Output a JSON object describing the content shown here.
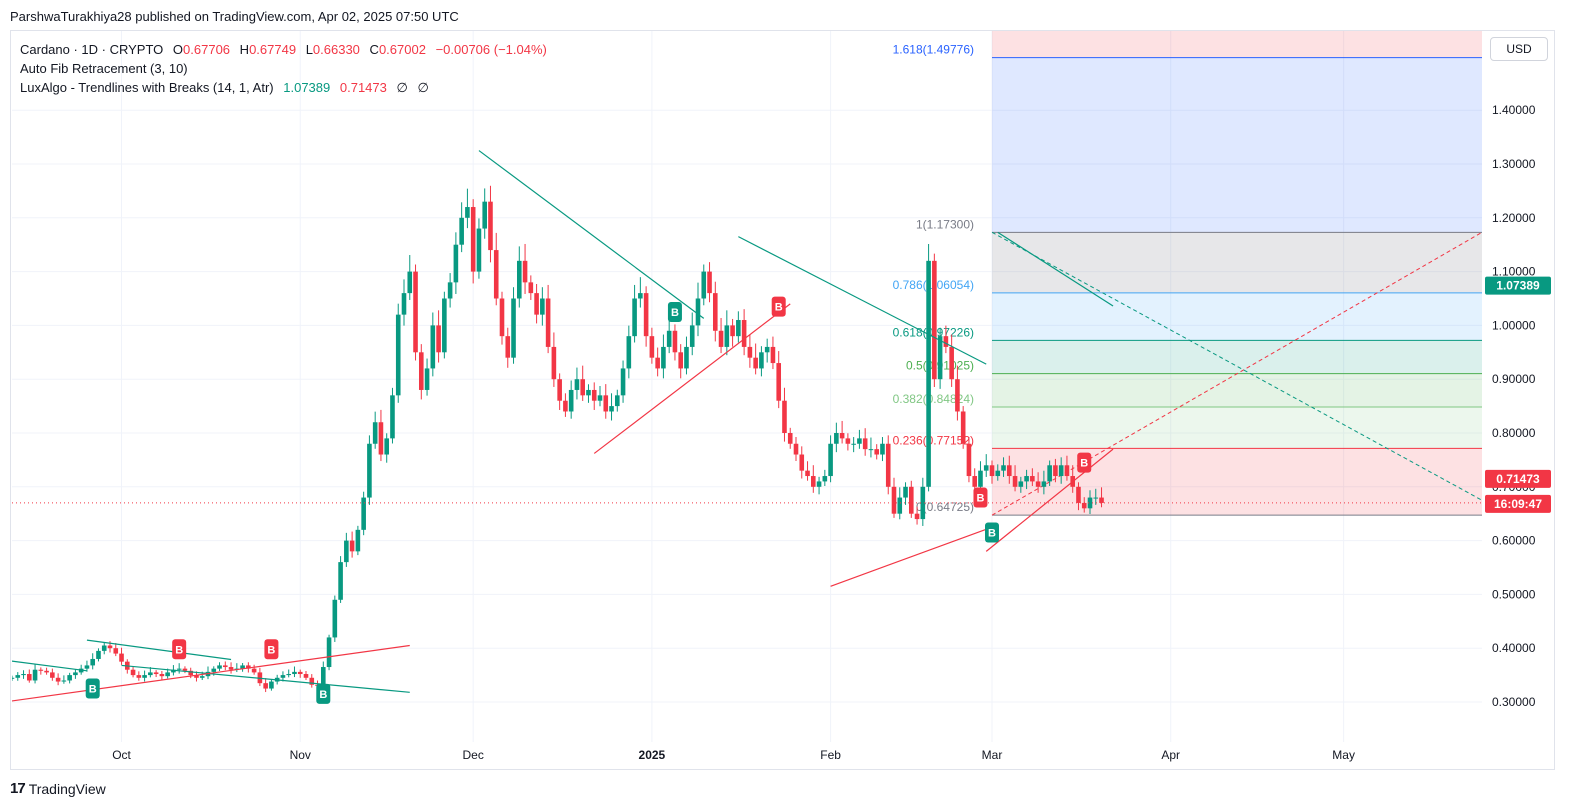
{
  "publisher_line": "ParshwaTurakhiya28 published on TradingView.com, Apr 02, 2025 07:50 UTC",
  "legend": {
    "symbol": "Cardano · 1D · CRYPTO",
    "o_label": "O",
    "o_value": "0.67706",
    "h_label": "H",
    "h_value": "0.67749",
    "l_label": "L",
    "l_value": "0.66330",
    "c_label": "C",
    "c_value": "0.67002",
    "change": "−0.00706 (−1.04%)",
    "indicator1": "Auto Fib Retracement (3, 10)",
    "indicator2": "LuxAlgo - Trendlines with Breaks (14, 1, Atr)",
    "indicator2_v1": "1.07389",
    "indicator2_v2": "0.71473",
    "indicator2_v3": "∅",
    "indicator2_v4": "∅"
  },
  "currency": "USD",
  "footer": {
    "brand": "TradingView",
    "mark": "17"
  },
  "colors": {
    "up": "#089981",
    "down": "#f23645",
    "teal": "#089981",
    "red_line": "#f23645",
    "fib_blue": "#2962ff"
  },
  "chart_data": {
    "type": "candlestick",
    "symbol": "Cardano",
    "interval": "1D",
    "y_axis": {
      "ticks": [
        0.3,
        0.4,
        0.5,
        0.6,
        0.7,
        0.8,
        0.9,
        1.0,
        1.1,
        1.2,
        1.3,
        1.4
      ],
      "tick_labels": [
        "0.30000",
        "0.40000",
        "0.50000",
        "0.60000",
        "0.70000",
        "0.80000",
        "0.90000",
        "1.00000",
        "1.10000",
        "1.20000",
        "1.30000",
        "1.40000"
      ],
      "ylim": [
        0.2,
        1.56
      ]
    },
    "x_axis": {
      "tick_labels": [
        "Oct",
        "Nov",
        "Dec",
        "2025",
        "Feb",
        "Mar",
        "Apr",
        "May"
      ],
      "range": [
        "2024-09-12",
        "2025-05-25"
      ]
    },
    "current_price_label": "0.71473",
    "countdown_label": "16:09:47",
    "trendline_label": "1.07389",
    "last_price": 0.67002,
    "closes": [
      0.345,
      0.35,
      0.352,
      0.34,
      0.36,
      0.358,
      0.355,
      0.345,
      0.338,
      0.34,
      0.35,
      0.355,
      0.362,
      0.368,
      0.38,
      0.395,
      0.405,
      0.4,
      0.39,
      0.375,
      0.36,
      0.35,
      0.345,
      0.35,
      0.355,
      0.352,
      0.348,
      0.355,
      0.36,
      0.362,
      0.358,
      0.35,
      0.345,
      0.348,
      0.356,
      0.362,
      0.368,
      0.365,
      0.36,
      0.362,
      0.368,
      0.362,
      0.355,
      0.335,
      0.325,
      0.338,
      0.345,
      0.35,
      0.352,
      0.356,
      0.352,
      0.345,
      0.332,
      0.33,
      0.365,
      0.42,
      0.49,
      0.56,
      0.6,
      0.58,
      0.62,
      0.68,
      0.78,
      0.82,
      0.76,
      0.79,
      0.87,
      1.02,
      1.06,
      1.1,
      0.95,
      0.88,
      0.92,
      1.0,
      0.95,
      1.05,
      1.08,
      1.15,
      1.2,
      1.22,
      1.1,
      1.18,
      1.23,
      1.14,
      1.05,
      0.98,
      0.94,
      1.05,
      1.12,
      1.08,
      1.06,
      1.02,
      1.05,
      0.96,
      0.9,
      0.86,
      0.84,
      0.88,
      0.9,
      0.87,
      0.88,
      0.86,
      0.87,
      0.84,
      0.85,
      0.87,
      0.92,
      0.98,
      1.05,
      1.06,
      0.98,
      0.94,
      0.92,
      0.96,
      0.99,
      0.95,
      0.92,
      0.96,
      1.0,
      1.05,
      1.1,
      1.06,
      0.99,
      0.96,
      1.0,
      0.98,
      1.01,
      0.96,
      0.94,
      0.92,
      0.95,
      0.96,
      0.93,
      0.86,
      0.8,
      0.78,
      0.76,
      0.73,
      0.72,
      0.7,
      0.71,
      0.72,
      0.78,
      0.8,
      0.79,
      0.78,
      0.78,
      0.79,
      0.77,
      0.77,
      0.76,
      0.78,
      0.7,
      0.65,
      0.68,
      0.7,
      0.65,
      0.64,
      0.7,
      1.12,
      0.9,
      0.98,
      0.96,
      0.9,
      0.84,
      0.78,
      0.72,
      0.7,
      0.73,
      0.74,
      0.72,
      0.73,
      0.74,
      0.72,
      0.7,
      0.71,
      0.72,
      0.71,
      0.7,
      0.71,
      0.74,
      0.72,
      0.74,
      0.72,
      0.7,
      0.67,
      0.66,
      0.68,
      0.68,
      0.67
    ],
    "trendlines_teal": [
      {
        "from": [
          "2024-09-12",
          0.376
        ],
        "to": [
          "2024-09-25",
          0.358
        ]
      },
      {
        "from": [
          "2024-09-25",
          0.415
        ],
        "to": [
          "2024-10-20",
          0.379
        ]
      },
      {
        "from": [
          "2024-10-01",
          0.368
        ],
        "to": [
          "2024-11-20",
          0.318
        ]
      },
      {
        "from": [
          "2024-12-02",
          1.325
        ],
        "to": [
          "2025-01-10",
          1.013
        ]
      },
      {
        "from": [
          "2025-01-16",
          1.165
        ],
        "to": [
          "2025-02-28",
          0.928
        ]
      },
      {
        "from": [
          "2025-03-02",
          1.173
        ],
        "to": [
          "2025-03-22",
          1.036
        ]
      }
    ],
    "trendlines_red": [
      {
        "from": [
          "2024-09-12",
          0.302
        ],
        "to": [
          "2024-11-20",
          0.405
        ]
      },
      {
        "from": [
          "2024-12-22",
          0.762
        ],
        "to": [
          "2025-01-25",
          1.04
        ]
      },
      {
        "from": [
          "2025-02-01",
          0.515
        ],
        "to": [
          "2025-03-01",
          0.625
        ]
      },
      {
        "from": [
          "2025-02-28",
          0.58
        ],
        "to": [
          "2025-03-22",
          0.77
        ]
      }
    ],
    "fib": {
      "levels": [
        {
          "ratio": "1.618",
          "value": 1.49776,
          "label": "1.618(1.49776)",
          "color": "#2962ff"
        },
        {
          "ratio": "1",
          "value": 1.173,
          "label": "1(1.17300)",
          "color": "#787b86"
        },
        {
          "ratio": "0.786",
          "value": 1.06054,
          "label": "0.786(1.06054)",
          "color": "#42a5f5"
        },
        {
          "ratio": "0.618",
          "value": 0.97226,
          "label": "0.618(0.97226)",
          "color": "#089981"
        },
        {
          "ratio": "0.5",
          "value": 0.91025,
          "label": "0.5(0.91025)",
          "color": "#4caf50"
        },
        {
          "ratio": "0.382",
          "value": 0.84824,
          "label": "0.382(0.84824)",
          "color": "#81c784"
        },
        {
          "ratio": "0.236",
          "value": 0.77152,
          "label": "0.236(0.77152)",
          "color": "#f23645"
        },
        {
          "ratio": "0",
          "value": 0.64725,
          "label": "0(0.64725)",
          "color": "#787b86"
        }
      ],
      "x_start": "2025-03-01",
      "x_end": "2025-05-25",
      "top_fill_value": 1.56
    },
    "signals": [
      {
        "type": "B",
        "date": "2024-09-26",
        "price": 0.325,
        "color": "#089981"
      },
      {
        "type": "B",
        "date": "2024-10-11",
        "price": 0.398,
        "color": "#f23645"
      },
      {
        "type": "B",
        "date": "2024-10-27",
        "price": 0.398,
        "color": "#f23645"
      },
      {
        "type": "B",
        "date": "2024-11-05",
        "price": 0.315,
        "color": "#089981"
      },
      {
        "type": "B",
        "date": "2025-01-05",
        "price": 1.025,
        "color": "#089981"
      },
      {
        "type": "B",
        "date": "2025-01-23",
        "price": 1.035,
        "color": "#f23645"
      },
      {
        "type": "B",
        "date": "2025-02-27",
        "price": 0.68,
        "color": "#f23645"
      },
      {
        "type": "B",
        "date": "2025-03-01",
        "price": 0.615,
        "color": "#089981"
      },
      {
        "type": "B",
        "date": "2025-03-17",
        "price": 0.745,
        "color": "#f23645"
      }
    ]
  }
}
